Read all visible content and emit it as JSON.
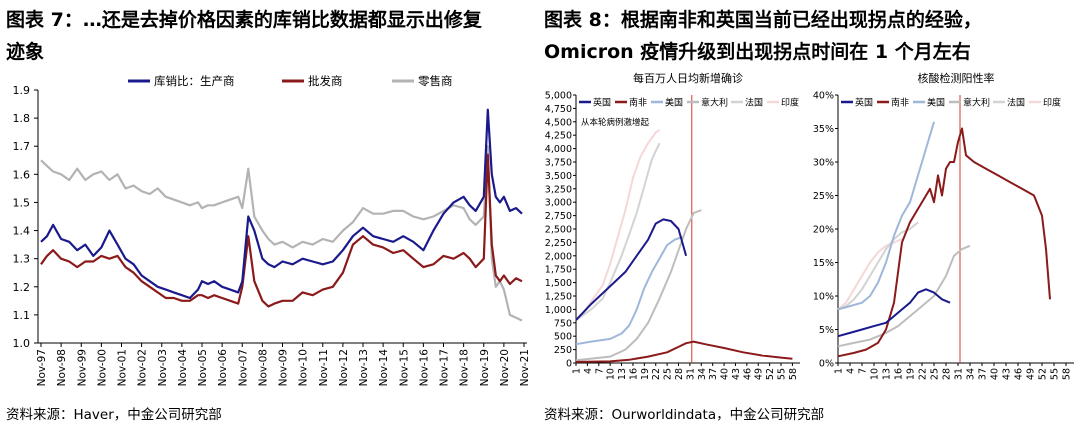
{
  "left": {
    "title_line1": "图表 7：…还是去掉价格因素的库销比数据都显示出修复",
    "title_line2": "迹象",
    "source": "资料来源：Haver，中金公司研究部"
  },
  "right": {
    "title_line1": "图表 8：根据南非和英国当前已经出现拐点的经验，",
    "title_line2": "Omicron 疫情升级到出现拐点时间在 1 个月左右",
    "source": "资料来源：Ourworldindata，中金公司研究部"
  },
  "chart_data": [
    {
      "type": "line",
      "title": "",
      "ylim": [
        1.0,
        1.9
      ],
      "yticks": [
        "1.0",
        "1.1",
        "1.2",
        "1.3",
        "1.4",
        "1.5",
        "1.6",
        "1.7",
        "1.8",
        "1.9"
      ],
      "categories": [
        "Nov-97",
        "Nov-98",
        "Nov-99",
        "Nov-00",
        "Nov-01",
        "Nov-02",
        "Nov-03",
        "Nov-04",
        "Nov-05",
        "Nov-06",
        "Nov-07",
        "Nov-08",
        "Nov-09",
        "Nov-10",
        "Nov-11",
        "Nov-12",
        "Nov-13",
        "Nov-14",
        "Nov-15",
        "Nov-16",
        "Nov-17",
        "Nov-18",
        "Nov-19",
        "Nov-20",
        "Nov-21"
      ],
      "grid": false,
      "legend": "top",
      "series": [
        {
          "name": "库销比：生产商",
          "color": "#1a1a8c",
          "x": [
            0,
            0.3,
            0.6,
            1,
            1.4,
            1.8,
            2.2,
            2.6,
            3,
            3.4,
            3.8,
            4.2,
            4.6,
            5,
            5.4,
            5.8,
            6.2,
            6.6,
            7,
            7.4,
            7.8,
            8,
            8.3,
            8.6,
            9,
            9.4,
            9.8,
            10,
            10.3,
            10.6,
            11,
            11.3,
            11.6,
            12,
            12.5,
            13,
            13.5,
            14,
            14.5,
            15,
            15.5,
            16,
            16.5,
            17,
            17.5,
            18,
            18.5,
            19,
            19.5,
            20,
            20.5,
            21,
            21.3,
            21.6,
            22,
            22.2,
            22.4,
            22.6,
            22.8,
            23,
            23.3,
            23.6,
            23.9
          ],
          "values": [
            1.36,
            1.38,
            1.42,
            1.37,
            1.36,
            1.33,
            1.35,
            1.31,
            1.34,
            1.4,
            1.35,
            1.3,
            1.28,
            1.24,
            1.22,
            1.2,
            1.19,
            1.18,
            1.17,
            1.16,
            1.19,
            1.22,
            1.21,
            1.22,
            1.2,
            1.19,
            1.18,
            1.22,
            1.45,
            1.4,
            1.3,
            1.28,
            1.27,
            1.29,
            1.28,
            1.3,
            1.29,
            1.28,
            1.29,
            1.33,
            1.38,
            1.41,
            1.38,
            1.37,
            1.36,
            1.38,
            1.36,
            1.33,
            1.4,
            1.46,
            1.5,
            1.52,
            1.49,
            1.47,
            1.52,
            1.83,
            1.6,
            1.52,
            1.5,
            1.52,
            1.47,
            1.48,
            1.46
          ]
        },
        {
          "name": "批发商",
          "color": "#8b1a1a",
          "x": [
            0,
            0.3,
            0.6,
            1,
            1.4,
            1.8,
            2.2,
            2.6,
            3,
            3.4,
            3.8,
            4.2,
            4.6,
            5,
            5.4,
            5.8,
            6.2,
            6.6,
            7,
            7.4,
            7.8,
            8,
            8.3,
            8.6,
            9,
            9.4,
            9.8,
            10,
            10.3,
            10.6,
            11,
            11.3,
            11.6,
            12,
            12.5,
            13,
            13.5,
            14,
            14.5,
            15,
            15.5,
            16,
            16.5,
            17,
            17.5,
            18,
            18.5,
            19,
            19.5,
            20,
            20.5,
            21,
            21.3,
            21.6,
            22,
            22.2,
            22.4,
            22.6,
            22.8,
            23,
            23.3,
            23.6,
            23.9
          ],
          "values": [
            1.28,
            1.31,
            1.33,
            1.3,
            1.29,
            1.27,
            1.29,
            1.29,
            1.31,
            1.3,
            1.31,
            1.27,
            1.25,
            1.22,
            1.2,
            1.18,
            1.16,
            1.16,
            1.15,
            1.15,
            1.17,
            1.17,
            1.16,
            1.17,
            1.16,
            1.15,
            1.14,
            1.2,
            1.38,
            1.22,
            1.15,
            1.13,
            1.14,
            1.15,
            1.15,
            1.18,
            1.17,
            1.19,
            1.2,
            1.25,
            1.35,
            1.38,
            1.35,
            1.34,
            1.32,
            1.33,
            1.3,
            1.27,
            1.28,
            1.31,
            1.3,
            1.32,
            1.3,
            1.27,
            1.3,
            1.67,
            1.35,
            1.24,
            1.22,
            1.24,
            1.21,
            1.23,
            1.22
          ]
        },
        {
          "name": "零售商",
          "color": "#b3b3b3",
          "x": [
            0,
            0.3,
            0.6,
            1,
            1.4,
            1.8,
            2.2,
            2.6,
            3,
            3.4,
            3.8,
            4.2,
            4.6,
            5,
            5.4,
            5.8,
            6.2,
            6.6,
            7,
            7.4,
            7.8,
            8,
            8.3,
            8.6,
            9,
            9.4,
            9.8,
            10,
            10.3,
            10.6,
            11,
            11.3,
            11.6,
            12,
            12.5,
            13,
            13.5,
            14,
            14.5,
            15,
            15.5,
            16,
            16.5,
            17,
            17.5,
            18,
            18.5,
            19,
            19.5,
            20,
            20.5,
            21,
            21.3,
            21.6,
            22,
            22.2,
            22.4,
            22.6,
            22.8,
            23,
            23.3,
            23.6,
            23.9
          ],
          "values": [
            1.65,
            1.63,
            1.61,
            1.6,
            1.58,
            1.62,
            1.58,
            1.6,
            1.61,
            1.58,
            1.6,
            1.55,
            1.56,
            1.54,
            1.53,
            1.55,
            1.52,
            1.51,
            1.5,
            1.49,
            1.5,
            1.48,
            1.49,
            1.49,
            1.5,
            1.51,
            1.52,
            1.48,
            1.62,
            1.45,
            1.4,
            1.37,
            1.35,
            1.36,
            1.34,
            1.36,
            1.35,
            1.37,
            1.36,
            1.4,
            1.43,
            1.48,
            1.46,
            1.46,
            1.47,
            1.47,
            1.45,
            1.44,
            1.45,
            1.47,
            1.49,
            1.48,
            1.44,
            1.42,
            1.45,
            1.7,
            1.3,
            1.2,
            1.22,
            1.19,
            1.1,
            1.09,
            1.08
          ]
        }
      ]
    },
    {
      "type": "line",
      "title": "每百万人日均新增确诊",
      "ylim": [
        0,
        5000
      ],
      "yticks": [
        "0",
        "250",
        "500",
        "750",
        "1,000",
        "1,250",
        "1,500",
        "1,750",
        "2,000",
        "2,250",
        "2,500",
        "2,750",
        "3,000",
        "3,250",
        "3,500",
        "3,750",
        "4,000",
        "4,250",
        "4,500",
        "4,750",
        "5,000"
      ],
      "xlim": [
        1,
        60
      ],
      "xticks": [
        1,
        4,
        7,
        10,
        13,
        16,
        19,
        22,
        25,
        28,
        31,
        34,
        37,
        40,
        43,
        46,
        49,
        52,
        55,
        58
      ],
      "annotation": "从本轮病例激增起",
      "vline_x": 31.5,
      "legend": "top",
      "series": [
        {
          "name": "英国",
          "color": "#1a1a8c",
          "x": [
            1,
            3,
            5,
            8,
            11,
            14,
            17,
            20,
            22,
            24,
            26,
            28,
            30
          ],
          "values": [
            800,
            950,
            1100,
            1300,
            1500,
            1700,
            2000,
            2300,
            2600,
            2680,
            2650,
            2500,
            2000
          ]
        },
        {
          "name": "南非",
          "color": "#8b1a1a",
          "x": [
            1,
            10,
            15,
            20,
            25,
            28,
            30,
            32,
            35,
            40,
            45,
            50,
            55,
            58
          ],
          "values": [
            20,
            30,
            60,
            120,
            200,
            300,
            370,
            400,
            350,
            280,
            200,
            140,
            100,
            80
          ]
        },
        {
          "name": "美国",
          "color": "#9fb7d8",
          "x": [
            1,
            5,
            10,
            13,
            15,
            17,
            19,
            21,
            23,
            25,
            27,
            29
          ],
          "values": [
            350,
            400,
            450,
            550,
            700,
            1000,
            1400,
            1700,
            1950,
            2200,
            2300,
            2350
          ]
        },
        {
          "name": "意大利",
          "color": "#bdbdbd",
          "x": [
            1,
            10,
            14,
            17,
            20,
            23,
            26,
            28,
            30,
            32,
            34
          ],
          "values": [
            50,
            120,
            250,
            450,
            750,
            1200,
            1700,
            2100,
            2500,
            2800,
            2850
          ]
        },
        {
          "name": "法国",
          "color": "#d3d3d3",
          "x": [
            1,
            3,
            5,
            8,
            10,
            13,
            15,
            17,
            19,
            21,
            23
          ],
          "values": [
            800,
            900,
            1000,
            1200,
            1500,
            2000,
            2400,
            2800,
            3300,
            3800,
            4100
          ]
        },
        {
          "name": "印度",
          "color": "#f4d8d8",
          "x": [
            1,
            3,
            5,
            8,
            10,
            12,
            14,
            16,
            18,
            20,
            22,
            23
          ],
          "values": [
            800,
            950,
            1150,
            1450,
            1850,
            2350,
            2850,
            3450,
            3850,
            4100,
            4300,
            4350
          ]
        }
      ]
    },
    {
      "type": "line",
      "title": "核酸检测阳性率",
      "ylim": [
        0,
        40
      ],
      "yticks": [
        "0%",
        "5%",
        "10%",
        "15%",
        "20%",
        "25%",
        "30%",
        "35%",
        "40%"
      ],
      "xlim": [
        1,
        60
      ],
      "xticks": [
        1,
        4,
        7,
        10,
        13,
        16,
        19,
        22,
        25,
        28,
        31,
        34,
        37,
        40,
        43,
        46,
        49,
        52,
        55,
        58
      ],
      "vline_x": 31.5,
      "legend": "top",
      "series": [
        {
          "name": "英国",
          "color": "#1a1a8c",
          "x": [
            1,
            4,
            7,
            10,
            13,
            15,
            17,
            19,
            21,
            23,
            25,
            27,
            29
          ],
          "values": [
            4,
            4.5,
            5,
            5.5,
            6,
            7,
            8,
            9,
            10.5,
            11,
            10.5,
            9.5,
            9
          ]
        },
        {
          "name": "南非",
          "color": "#8b1a1a",
          "x": [
            1,
            5,
            8,
            11,
            13,
            15,
            17,
            19,
            21,
            23,
            24,
            25,
            26,
            27,
            28,
            29,
            30,
            31,
            32,
            33,
            35,
            38,
            41,
            44,
            47,
            50,
            52,
            53,
            54
          ],
          "values": [
            1,
            1.5,
            2,
            3,
            5,
            9,
            18,
            21,
            23,
            25,
            26,
            24,
            28,
            25,
            29,
            30,
            30,
            33,
            35,
            31,
            30,
            29,
            28,
            27,
            26,
            25,
            22,
            17,
            9.5
          ]
        },
        {
          "name": "美国",
          "color": "#9fb7d8",
          "x": [
            1,
            4,
            7,
            9,
            11,
            13,
            15,
            17,
            19,
            21,
            23,
            25
          ],
          "values": [
            8,
            8.5,
            9,
            10,
            12,
            15,
            19,
            22,
            24,
            28,
            32,
            36
          ]
        },
        {
          "name": "意大利",
          "color": "#bdbdbd",
          "x": [
            1,
            5,
            9,
            13,
            16,
            19,
            22,
            25,
            28,
            30,
            32,
            34
          ],
          "values": [
            2.5,
            3,
            3.5,
            4.5,
            5.5,
            7,
            8.5,
            10,
            13,
            16,
            17,
            17.5
          ]
        },
        {
          "name": "法国",
          "color": "#d3d3d3",
          "x": [
            1,
            3,
            5,
            7,
            9,
            11,
            13,
            15,
            17,
            19,
            21
          ],
          "values": [
            8,
            8.5,
            9.5,
            11,
            13,
            15,
            17,
            18.5,
            19.5,
            20,
            21
          ]
        },
        {
          "name": "印度",
          "color": "#f4d8d8",
          "x": [
            1,
            3,
            5,
            7,
            9,
            11,
            13,
            15,
            17
          ],
          "values": [
            8,
            9,
            11,
            13,
            15,
            16.5,
            17.5,
            18,
            18.5
          ]
        }
      ]
    }
  ]
}
